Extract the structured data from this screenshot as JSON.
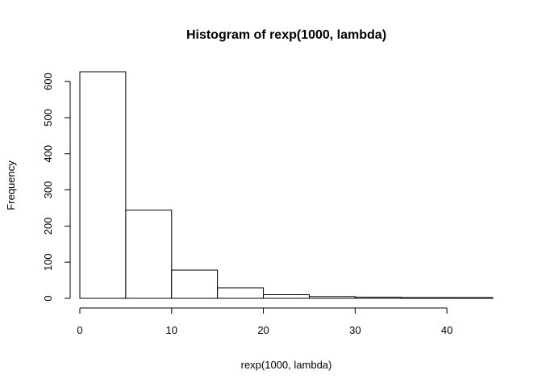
{
  "chart_data": {
    "type": "bar",
    "title": "Histogram of rexp(1000, lambda)",
    "xlabel": "rexp(1000, lambda)",
    "ylabel": "Frequency",
    "bins": [
      {
        "start": 0,
        "end": 5,
        "count": 627
      },
      {
        "start": 5,
        "end": 10,
        "count": 244
      },
      {
        "start": 10,
        "end": 15,
        "count": 78
      },
      {
        "start": 15,
        "end": 20,
        "count": 29
      },
      {
        "start": 20,
        "end": 25,
        "count": 10
      },
      {
        "start": 25,
        "end": 30,
        "count": 5
      },
      {
        "start": 30,
        "end": 35,
        "count": 3
      },
      {
        "start": 35,
        "end": 40,
        "count": 2
      },
      {
        "start": 40,
        "end": 45,
        "count": 2
      }
    ],
    "xlim": [
      0,
      45
    ],
    "ylim": [
      0,
      627
    ],
    "x_ticks": [
      0,
      10,
      20,
      30,
      40
    ],
    "y_ticks": [
      0,
      100,
      200,
      300,
      400,
      500,
      600
    ],
    "grid": false
  }
}
